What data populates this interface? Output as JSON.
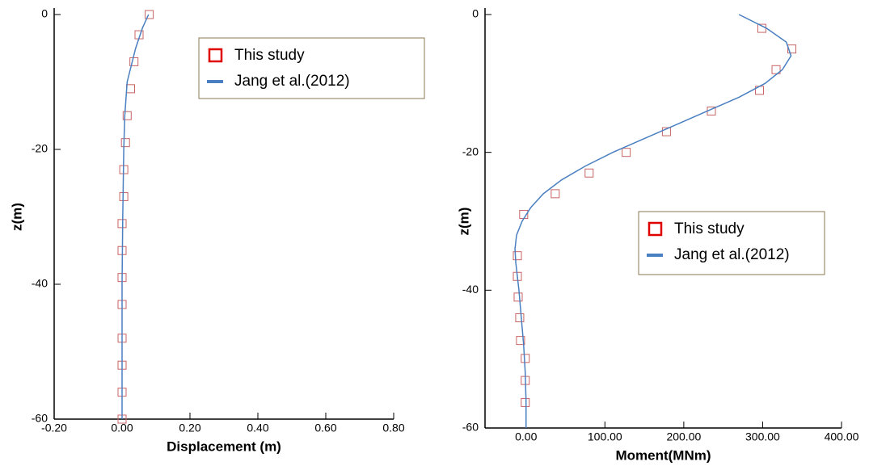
{
  "chart_data": [
    {
      "type": "scatter-line",
      "xlabel": "Displacement (m)",
      "ylabel": "z(m)",
      "xlim": [
        -0.2,
        0.8
      ],
      "ylim": [
        -60,
        0
      ],
      "xticks": [
        {
          "value": -0.2,
          "label": "-0.20"
        },
        {
          "value": 0,
          "label": "0.00"
        },
        {
          "value": 0.2,
          "label": "0.20"
        },
        {
          "value": 0.4,
          "label": "0.40"
        },
        {
          "value": 0.6,
          "label": "0.60"
        },
        {
          "value": 0.8,
          "label": "0.80"
        }
      ],
      "yticks": [
        0,
        -20,
        -40,
        -60
      ],
      "series": [
        {
          "name": "This study",
          "color": "#c86464",
          "style": "marker",
          "x": [
            0.08,
            0.05,
            0.035,
            0.025,
            0.015,
            0.01,
            0.005,
            0.005,
            0,
            0,
            0,
            0,
            0,
            0,
            0,
            0
          ],
          "values": [
            0,
            -3,
            -7,
            -11,
            -15,
            -19,
            -23,
            -27,
            -31,
            -35,
            -39,
            -43,
            -48,
            -52,
            -56,
            -60
          ]
        },
        {
          "name": "Jang et al.(2012)",
          "color": "#4a7fc1",
          "style": "line",
          "x": [
            0.078,
            0.06,
            0.04,
            0.015,
            0.008,
            0.005,
            0.002,
            0,
            0,
            0
          ],
          "values": [
            0,
            -2,
            -5,
            -10,
            -15,
            -20,
            -30,
            -40,
            -50,
            -60
          ]
        }
      ]
    },
    {
      "type": "scatter-line",
      "xlabel": "Moment(MNm)",
      "ylabel": "z(m)",
      "xlim": [
        -52,
        400
      ],
      "ylim": [
        -60,
        0
      ],
      "xticks": [
        {
          "value": 0,
          "label": "0.00"
        },
        {
          "value": 100,
          "label": "100.00"
        },
        {
          "value": 200,
          "label": "200.00"
        },
        {
          "value": 300,
          "label": "300.00"
        },
        {
          "value": 400,
          "label": "400.00"
        }
      ],
      "yticks": [
        0,
        -20,
        -40,
        -60
      ],
      "series": [
        {
          "name": "This study",
          "color": "#c86464",
          "style": "marker",
          "x": [
            299,
            337,
            317,
            296,
            235,
            178,
            127,
            80,
            37,
            -3,
            -11,
            -11,
            -10,
            -8,
            -7,
            -1,
            -1,
            -1
          ],
          "values": [
            -2,
            -5,
            -8,
            -11,
            -14,
            -17,
            -20,
            -23,
            -26,
            -29,
            -35,
            -38,
            -41,
            -44,
            -47.3,
            -49.9,
            -53.1,
            -56.3
          ]
        },
        {
          "name": "Jang et al.(2012)",
          "color": "#4a7fc1",
          "style": "line",
          "x": [
            270,
            305,
            330,
            336,
            325,
            303,
            270,
            230,
            190,
            150,
            110,
            75,
            45,
            22,
            6,
            -5,
            -12,
            -14,
            -13,
            -11,
            -9,
            -6,
            -3,
            -1,
            0,
            0
          ],
          "values": [
            0,
            -2,
            -4,
            -6,
            -8,
            -10,
            -12,
            -14,
            -16,
            -18,
            -20,
            -22,
            -24,
            -26,
            -28,
            -30,
            -32,
            -34,
            -36,
            -38,
            -40,
            -44,
            -48,
            -52,
            -56,
            -60
          ]
        }
      ]
    }
  ]
}
